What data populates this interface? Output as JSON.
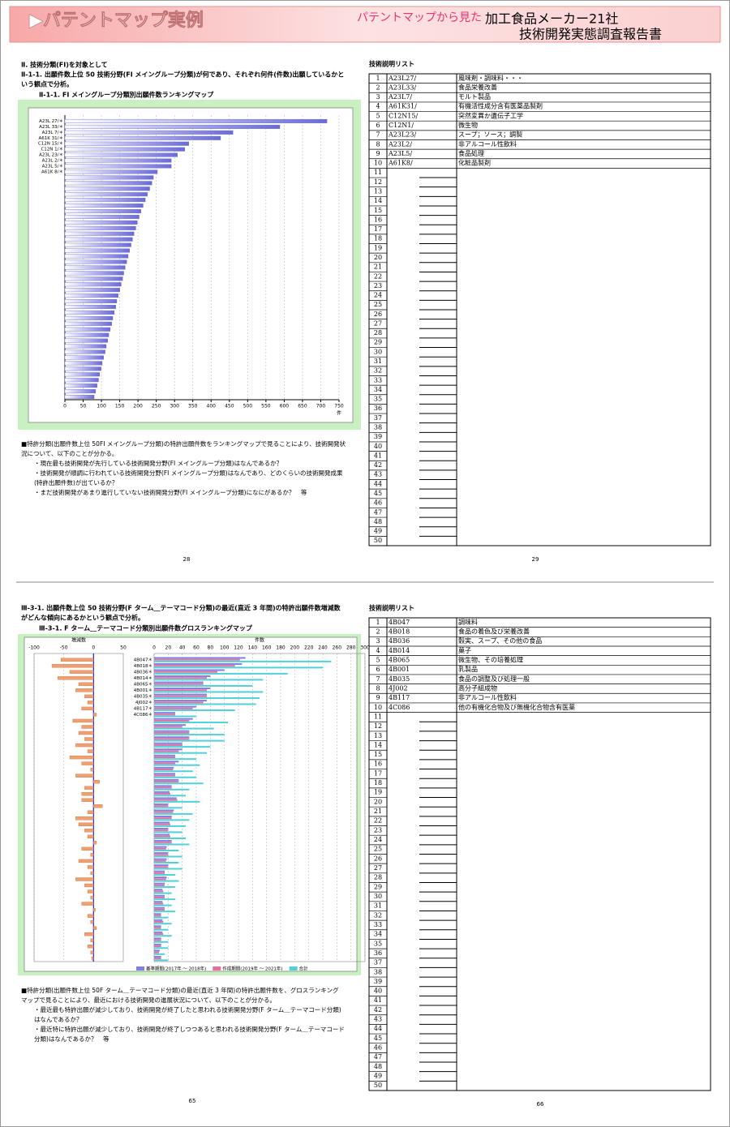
{
  "header": {
    "title": "▶パテントマップ実例",
    "lead": "パテントマップから見た",
    "subtitle_1": "加工食品メーカー21社",
    "subtitle_2": "技術開発実態調査報告書"
  },
  "top_left": {
    "lines": [
      "Ⅱ. 技術分類(FI)を対象として",
      "Ⅱ-1-1. 出願件数上位 50 技術分野(FI メイングループ分類)が何であり、それぞれ何件(件数)出願しているかと",
      "いう観点で分析。"
    ],
    "chart_title": "Ⅱ-1-1. FI メイングループ分類別出願件数ランキングマップ",
    "chart": {
      "type": "bar",
      "orientation": "horizontal",
      "color": "#6a6ad8",
      "xlabel": "件",
      "xlim": [
        0,
        750
      ],
      "xticks": [
        0,
        50,
        100,
        150,
        200,
        250,
        300,
        350,
        400,
        450,
        500,
        550,
        600,
        650,
        700,
        750
      ],
      "grid": true,
      "categories": [
        "A23L 27/＊",
        "A23L 33/＊",
        "A23L 7/＊",
        "A61K 31/＊",
        "C12N 15/＊",
        "C12N 1/＊",
        "A23L 23/＊",
        "A23L 2/＊",
        "A23L 5/＊",
        "A61K 8/＊",
        null,
        null,
        null,
        null,
        null,
        null,
        null,
        null,
        null,
        null,
        null,
        null,
        null,
        null,
        null,
        null,
        null,
        null,
        null,
        null,
        null,
        null,
        null,
        null,
        null,
        null,
        null,
        null,
        null,
        null,
        null,
        null,
        null,
        null,
        null,
        null,
        null,
        null,
        null,
        null
      ],
      "values": [
        717,
        588,
        460,
        426,
        339,
        328,
        308,
        291,
        291,
        253,
        242,
        238,
        232,
        226,
        220,
        214,
        208,
        203,
        198,
        194,
        189,
        185,
        181,
        177,
        173,
        169,
        165,
        161,
        158,
        154,
        150,
        146,
        142,
        139,
        135,
        131,
        128,
        124,
        120,
        117,
        113,
        110,
        106,
        102,
        99,
        95,
        92,
        88,
        84,
        80
      ]
    },
    "notes": [
      "■特許分類(出願件数上位 50FI メイングループ分類)の特許出願件数をランキングマップで見ることにより、技術開発状",
      "況について、以下のことが分かる。",
      "・現在最も技術開発が先行している技術開発分野(FI メイングループ分類)はなんであるか？",
      "・技術開発が順調に行われている技術開発分野(FI メイングループ分類)はなんであり、どのくらいの技術開発成果",
      "(特許出願件数)が出ているか？",
      "・まだ技術開発があまり進行していない技術開発分野(FI メイングループ分類)になにがあるか？　等"
    ],
    "page_number": 28
  },
  "top_right": {
    "list_title": "技術説明リスト",
    "rows": [
      [
        1,
        "A23L27/",
        "風味剤・調味料・・・"
      ],
      [
        2,
        "A23L33/",
        "食品栄養改善"
      ],
      [
        3,
        "A23L7/",
        "モルト製品"
      ],
      [
        4,
        "A61K31/",
        "有機活性成分含有医薬品製剤"
      ],
      [
        5,
        "C12N15/",
        "突然変異か遺伝子工学"
      ],
      [
        6,
        "C12N1/",
        "微生物"
      ],
      [
        7,
        "A23L23/",
        "スープ；ソース；調製"
      ],
      [
        8,
        "A23L2/",
        "非アルコール性飲料"
      ],
      [
        9,
        "A23L5/",
        "食品処理"
      ],
      [
        10,
        "A61K8/",
        "化粧品製剤"
      ],
      [
        11
      ],
      [
        12
      ],
      [
        13
      ],
      [
        14
      ],
      [
        15
      ],
      [
        16
      ],
      [
        17
      ],
      [
        18
      ],
      [
        19
      ],
      [
        20
      ],
      [
        21
      ],
      [
        22
      ],
      [
        23
      ],
      [
        24
      ],
      [
        25
      ],
      [
        26
      ],
      [
        27
      ],
      [
        28
      ],
      [
        29
      ],
      [
        30
      ],
      [
        31
      ],
      [
        32
      ],
      [
        33
      ],
      [
        34
      ],
      [
        35
      ],
      [
        36
      ],
      [
        37
      ],
      [
        38
      ],
      [
        39
      ],
      [
        40
      ],
      [
        41
      ],
      [
        42
      ],
      [
        43
      ],
      [
        44
      ],
      [
        45
      ],
      [
        46
      ],
      [
        47
      ],
      [
        48
      ],
      [
        49
      ],
      [
        50
      ]
    ],
    "page_number": 29
  },
  "bottom_left": {
    "lines": [
      "Ⅲ-3-1. 出願件数上位 50 技術分野(F ターム＿テーマコード分類)の最近(直近 3 年間)の特許出願件数増減数",
      "がどんな傾向にあるかという観点で分析。"
    ],
    "chart_title": "Ⅲ-3-1. F ターム＿テーマコード分類別出願件数グロスランキングマップ",
    "chart": {
      "type": "bar",
      "orientation": "horizontal",
      "grid": true,
      "categories": [
        "4B047＊",
        "4B018＊",
        "4B036＊",
        "4B014＊",
        "4B065＊",
        "4B001＊",
        "4B035＊",
        "4J002＊",
        "4B117＊",
        "4C086＊",
        null,
        null,
        null,
        null,
        null,
        null,
        null,
        null,
        null,
        null,
        null,
        null,
        null,
        null,
        null,
        null,
        null,
        null,
        null,
        null,
        null,
        null,
        null,
        null,
        null,
        null,
        null,
        null,
        null,
        null,
        null,
        null,
        null,
        null,
        null,
        null,
        null,
        null,
        null,
        null
      ],
      "diff": {
        "label": "増減数",
        "color": "#f0a070",
        "xlim": [
          -100,
          50
        ],
        "xticks": [
          -100,
          -50,
          0,
          50
        ],
        "values": [
          -55,
          -70,
          -40,
          -60,
          -25,
          -30,
          -15,
          -10,
          -20,
          5,
          -35,
          -20,
          -25,
          -15,
          -30,
          -10,
          -40,
          -20,
          -5,
          -30,
          10,
          -15,
          -20,
          -20,
          15,
          -10,
          -30,
          -25,
          -15,
          -10,
          5,
          -20,
          -5,
          -25,
          -10,
          -5,
          -30,
          -15,
          -10,
          -5,
          -20,
          3,
          -10,
          -5,
          5,
          -15,
          -5,
          -10,
          -5,
          -3
        ]
      },
      "count": {
        "label": "件数",
        "xlim": [
          0,
          300
        ],
        "xticks": [
          0,
          20,
          40,
          60,
          80,
          100,
          120,
          140,
          160,
          180,
          200,
          220,
          240,
          260,
          280,
          300
        ],
        "series": [
          {
            "name": "基準期間(2017年 ～ 2018年)",
            "color": "#8080e0",
            "values": [
              130,
              125,
              100,
              80,
              70,
              80,
              75,
              75,
              60,
              30,
              55,
              45,
              50,
              50,
              40,
              40,
              30,
              35,
              28,
              30,
              35,
              25,
              22,
              32,
              20,
              28,
              25,
              22,
              20,
              22,
              25,
              18,
              20,
              18,
              20,
              15,
              18,
              15,
              12,
              15,
              12,
              15,
              10,
              12,
              10,
              12,
              10,
              10,
              8,
              10
            ]
          },
          {
            "name": "作成期間(2019年 ～ 2021年)",
            "color": "#e070a0",
            "values": [
              122,
              115,
              90,
              75,
              70,
              75,
              75,
              70,
              55,
              30,
              50,
              40,
              50,
              50,
              40,
              35,
              30,
              30,
              27,
              30,
              35,
              25,
              23,
              33,
              20,
              27,
              25,
              23,
              20,
              23,
              25,
              17,
              20,
              17,
              20,
              15,
              17,
              15,
              13,
              15,
              13,
              15,
              10,
              13,
              10,
              13,
              10,
              10,
              7,
              10
            ]
          },
          {
            "name": "合計",
            "color": "#50d0d8",
            "values": [
              252,
              240,
              190,
              155,
              140,
              155,
              150,
              145,
              115,
              60,
              105,
              85,
              100,
              100,
              80,
              75,
              60,
              65,
              55,
              60,
              70,
              50,
              45,
              65,
              40,
              55,
              50,
              45,
              40,
              45,
              50,
              35,
              40,
              35,
              40,
              30,
              35,
              30,
              25,
              30,
              25,
              30,
              20,
              25,
              20,
              25,
              20,
              20,
              15,
              20
            ]
          }
        ]
      }
    },
    "notes": [
      "■特許分類(出願件数上位 50F ターム＿テーマコード分類)の最近(直近 3 年間)の特許出願件数を、グロスランキング",
      "マップで見ることにより、最近における技術開発の進展状況について、以下のことが分かる。",
      "・最近最も特許出願が減少しており、技術開発が終了したと思われる技術開発分野(F ターム＿テーマコード分類)",
      "はなんであるか？",
      "・最近特に特許出願が減少しており、技術開発が終了しつつあると思われる技術開発分野(F ターム＿テーマコード",
      "分類)はなんであるか？　等"
    ],
    "page_number": 65
  },
  "bottom_right": {
    "list_title": "技術説明リスト",
    "rows": [
      [
        1,
        "4B047",
        "調味料"
      ],
      [
        2,
        "4B018",
        "食品の着色及び栄養改善"
      ],
      [
        3,
        "4B036",
        "穀実、スープ、その他の食品"
      ],
      [
        4,
        "4B014",
        "菓子"
      ],
      [
        5,
        "4B065",
        "微生物、その培養処理"
      ],
      [
        6,
        "4B001",
        "乳製品"
      ],
      [
        7,
        "4B035",
        "食品の調整及び処理一般"
      ],
      [
        8,
        "4J002",
        "高分子組成物"
      ],
      [
        9,
        "4B117",
        "非アルコール性飲料"
      ],
      [
        10,
        "4C086",
        "他の有機化合物及び無機化合物含有医薬"
      ],
      [
        11
      ],
      [
        12
      ],
      [
        13
      ],
      [
        14
      ],
      [
        15
      ],
      [
        16
      ],
      [
        17
      ],
      [
        18
      ],
      [
        19
      ],
      [
        20
      ],
      [
        21
      ],
      [
        22
      ],
      [
        23
      ],
      [
        24
      ],
      [
        25
      ],
      [
        26
      ],
      [
        27
      ],
      [
        28
      ],
      [
        29
      ],
      [
        30
      ],
      [
        31
      ],
      [
        32
      ],
      [
        33
      ],
      [
        34
      ],
      [
        35
      ],
      [
        36
      ],
      [
        37
      ],
      [
        38
      ],
      [
        39
      ],
      [
        40
      ],
      [
        41
      ],
      [
        42
      ],
      [
        43
      ],
      [
        44
      ],
      [
        45
      ],
      [
        46
      ],
      [
        47
      ],
      [
        48
      ],
      [
        49
      ],
      [
        50
      ]
    ],
    "page_number": 66
  }
}
